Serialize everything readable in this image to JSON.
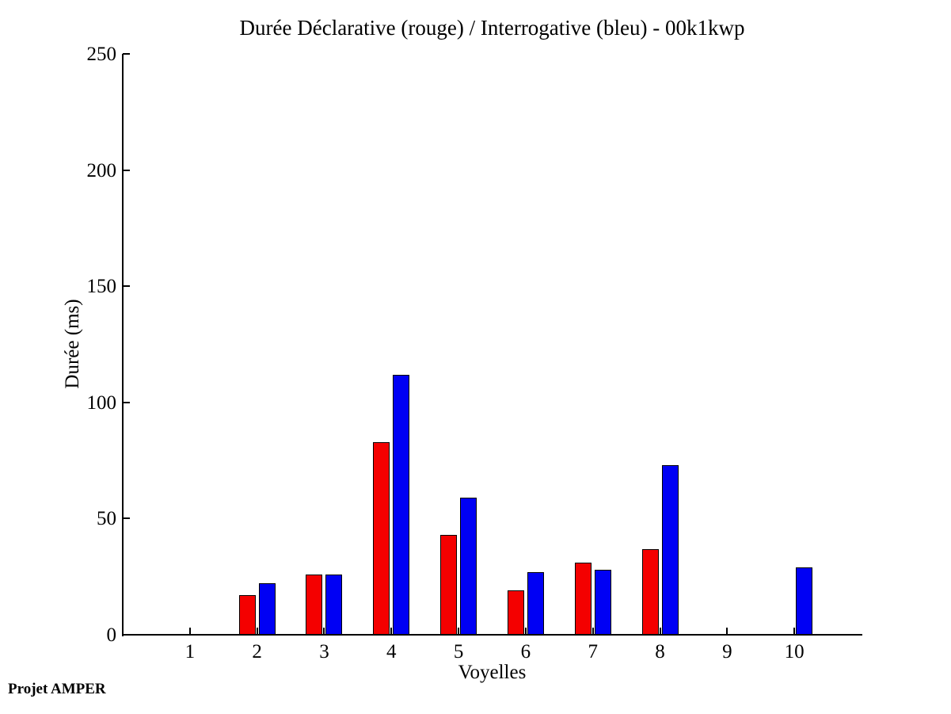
{
  "figure": {
    "title": "Durée Déclarative (rouge) / Interrogative (bleu) - 00k1kwp",
    "footer": "Projet AMPER",
    "background_color": "#ffffff",
    "axis_color": "#000000"
  },
  "chart_data": {
    "type": "bar",
    "title": "Durée Déclarative (rouge) / Interrogative (bleu) - 00k1kwp",
    "xlabel": "Voyelles",
    "ylabel": "Durée (ms)",
    "categories": [
      1,
      2,
      3,
      4,
      5,
      6,
      7,
      8,
      9,
      10
    ],
    "series": [
      {
        "name": "Déclarative (rouge)",
        "color": "#f40000",
        "values": [
          0,
          17,
          26,
          83,
          43,
          19,
          31,
          37,
          0,
          0
        ]
      },
      {
        "name": "Interrogative (bleu)",
        "color": "#0000f4",
        "values": [
          0,
          22,
          26,
          112,
          59,
          27,
          28,
          73,
          0,
          29
        ]
      }
    ],
    "ylim": [
      0,
      250
    ],
    "xlim": [
      0,
      11
    ],
    "yticks": [
      0,
      50,
      100,
      150,
      200,
      250
    ],
    "grid": false,
    "legend_position": "none"
  }
}
